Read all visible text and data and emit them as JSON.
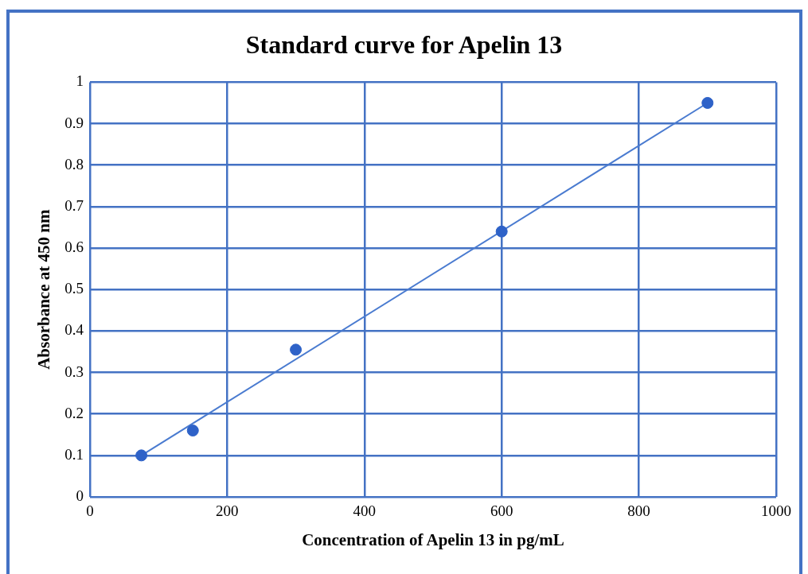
{
  "chart_data": {
    "type": "scatter",
    "title": "Standard curve for Apelin 13",
    "xlabel": "Concentration of Apelin 13 in pg/mL",
    "ylabel": "Absorbance at 450 nm",
    "series": [
      {
        "type": "scatter",
        "color": "#2e62c8",
        "x": [
          75,
          150,
          300,
          600,
          900
        ],
        "values": [
          0.1,
          0.16,
          0.355,
          0.64,
          0.95
        ]
      },
      {
        "type": "line",
        "marker": "none",
        "color": "#4a7bd0",
        "x": [
          75,
          900
        ],
        "values": [
          0.1,
          0.95
        ]
      }
    ],
    "xlim": [
      0,
      1000
    ],
    "xticks": [
      0,
      200,
      400,
      600,
      800,
      1000
    ],
    "ylim": [
      0,
      1
    ],
    "yticks": [
      0,
      0.1,
      0.2,
      0.3,
      0.4,
      0.5,
      0.6,
      0.7,
      0.8,
      0.9,
      1
    ],
    "grid": true,
    "marker": "circle"
  }
}
